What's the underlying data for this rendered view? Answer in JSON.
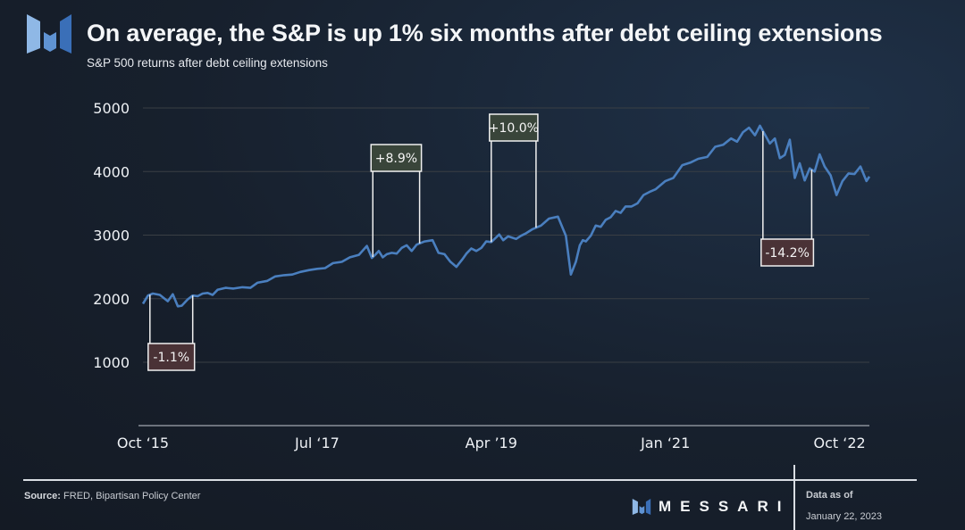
{
  "header": {
    "title": "On average, the S&P is up 1% six months after debt ceiling extensions",
    "subtitle": "S&P 500 returns after debt ceiling extensions"
  },
  "footer": {
    "source_label": "Source:",
    "source_text": " FRED, Bipartisan Policy Center",
    "brand": "MESSARI",
    "data_as_of_label": "Data as of",
    "data_as_of_date": "January 22, 2023"
  },
  "colors": {
    "line": "#4a7fbf",
    "grid": "#3a3f44",
    "positive_box": "#39453a",
    "negative_box": "#4a3236",
    "logo_light": "#8fb8e6",
    "logo_mid": "#5f93d3",
    "logo_dark": "#3a6fb8"
  },
  "chart_data": {
    "type": "line",
    "title": "On average, the S&P is up 1% six months after debt ceiling extensions",
    "subtitle": "S&P 500 returns after debt ceiling extensions",
    "xlabel": "",
    "ylabel": "",
    "x_range": [
      2015.75,
      2023.05
    ],
    "ylim": [
      0,
      5000
    ],
    "y_ticks": [
      1000,
      2000,
      3000,
      4000,
      5000
    ],
    "x_ticks": [
      {
        "label": "Oct ‘15",
        "x": 2015.75
      },
      {
        "label": "Jul ‘17",
        "x": 2017.5
      },
      {
        "label": "Apr ’19",
        "x": 2019.25
      },
      {
        "label": "Jan ‘21",
        "x": 2021.0
      },
      {
        "label": "Oct ‘22",
        "x": 2022.75
      }
    ],
    "grid": true,
    "legend": "none",
    "series": [
      {
        "name": "S&P 500",
        "x": [
          2015.75,
          2015.8,
          2015.85,
          2015.92,
          2016.0,
          2016.05,
          2016.1,
          2016.14,
          2016.2,
          2016.25,
          2016.3,
          2016.35,
          2016.4,
          2016.45,
          2016.5,
          2016.58,
          2016.66,
          2016.75,
          2016.83,
          2016.9,
          2017.0,
          2017.08,
          2017.17,
          2017.25,
          2017.33,
          2017.42,
          2017.5,
          2017.58,
          2017.66,
          2017.75,
          2017.83,
          2017.92,
          2018.0,
          2018.05,
          2018.09,
          2018.12,
          2018.16,
          2018.2,
          2018.25,
          2018.3,
          2018.35,
          2018.4,
          2018.45,
          2018.5,
          2018.58,
          2018.66,
          2018.72,
          2018.78,
          2018.84,
          2018.9,
          2018.96,
          2019.0,
          2019.05,
          2019.1,
          2019.15,
          2019.2,
          2019.25,
          2019.33,
          2019.37,
          2019.42,
          2019.5,
          2019.55,
          2019.6,
          2019.66,
          2019.75,
          2019.83,
          2019.92,
          2020.0,
          2020.05,
          2020.1,
          2020.14,
          2020.17,
          2020.2,
          2020.25,
          2020.3,
          2020.35,
          2020.4,
          2020.45,
          2020.5,
          2020.55,
          2020.6,
          2020.66,
          2020.72,
          2020.78,
          2020.84,
          2020.9,
          2021.0,
          2021.08,
          2021.17,
          2021.25,
          2021.33,
          2021.42,
          2021.5,
          2021.58,
          2021.66,
          2021.72,
          2021.78,
          2021.84,
          2021.9,
          2021.95,
          2022.0,
          2022.05,
          2022.1,
          2022.15,
          2022.2,
          2022.25,
          2022.3,
          2022.35,
          2022.4,
          2022.45,
          2022.5,
          2022.55,
          2022.6,
          2022.66,
          2022.72,
          2022.78,
          2022.84,
          2022.9,
          2022.96,
          2023.02,
          2023.05
        ],
        "values": [
          1920,
          2050,
          2080,
          2060,
          1960,
          2070,
          1880,
          1890,
          1990,
          2050,
          2040,
          2080,
          2090,
          2060,
          2140,
          2170,
          2160,
          2180,
          2170,
          2250,
          2280,
          2350,
          2370,
          2380,
          2420,
          2450,
          2470,
          2480,
          2560,
          2580,
          2650,
          2690,
          2830,
          2640,
          2700,
          2750,
          2650,
          2700,
          2720,
          2710,
          2800,
          2840,
          2750,
          2850,
          2900,
          2920,
          2720,
          2700,
          2580,
          2500,
          2620,
          2710,
          2790,
          2750,
          2800,
          2900,
          2890,
          3010,
          2920,
          2980,
          2940,
          2990,
          3030,
          3090,
          3150,
          3260,
          3290,
          2990,
          2380,
          2580,
          2840,
          2920,
          2900,
          2990,
          3150,
          3130,
          3240,
          3280,
          3380,
          3350,
          3450,
          3450,
          3500,
          3630,
          3680,
          3720,
          3850,
          3900,
          4100,
          4140,
          4200,
          4230,
          4390,
          4420,
          4520,
          4470,
          4620,
          4690,
          4570,
          4720,
          4580,
          4440,
          4520,
          4210,
          4260,
          4500,
          3900,
          4130,
          3860,
          4050,
          4000,
          4270,
          4080,
          3940,
          3630,
          3850,
          3970,
          3960,
          4080,
          3850,
          3920
        ]
      }
    ],
    "annotations": [
      {
        "label": "-1.1%",
        "x_start": 2015.82,
        "x_end": 2016.25,
        "sentiment": "negative",
        "placement": "below"
      },
      {
        "label": "+8.9%",
        "x_start": 2018.06,
        "x_end": 2018.53,
        "sentiment": "positive",
        "placement": "above"
      },
      {
        "label": "+10.0%",
        "x_start": 2019.25,
        "x_end": 2019.7,
        "sentiment": "positive",
        "placement": "above"
      },
      {
        "label": "-14.2%",
        "x_start": 2021.98,
        "x_end": 2022.47,
        "sentiment": "negative",
        "placement": "below"
      }
    ]
  }
}
